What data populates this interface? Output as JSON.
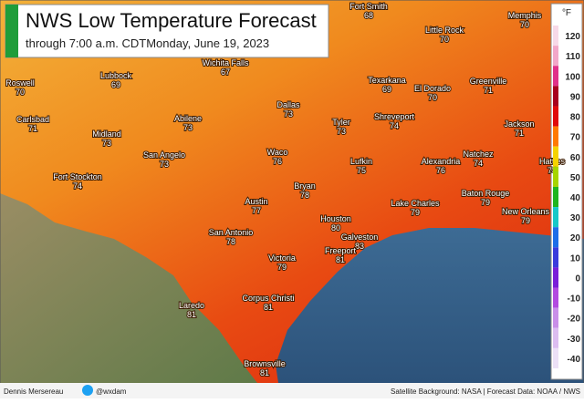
{
  "header": {
    "title": "NWS Low Temperature Forecast",
    "subtitle": "through 7:00 a.m. CDTMonday, June 19, 2023"
  },
  "cities": [
    {
      "name": "Fort Smith",
      "value": 68
    },
    {
      "name": "Memphis",
      "value": 70
    },
    {
      "name": "Little Rock",
      "value": 70
    },
    {
      "name": "Roswell",
      "value": 70
    },
    {
      "name": "Wichita Falls",
      "value": 67
    },
    {
      "name": "Lubbock",
      "value": 69
    },
    {
      "name": "Texarkana",
      "value": 69
    },
    {
      "name": "El Dorado",
      "value": 70
    },
    {
      "name": "Greenville",
      "value": 71
    },
    {
      "name": "Carlsbad",
      "value": 71
    },
    {
      "name": "Dallas",
      "value": 73
    },
    {
      "name": "Midland",
      "value": 73
    },
    {
      "name": "Abilene",
      "value": 73
    },
    {
      "name": "Tyler",
      "value": 73
    },
    {
      "name": "Shreveport",
      "value": 74
    },
    {
      "name": "Jackson",
      "value": 71
    },
    {
      "name": "San Angelo",
      "value": 73
    },
    {
      "name": "Waco",
      "value": 76
    },
    {
      "name": "Lufkin",
      "value": 75
    },
    {
      "name": "Alexandria",
      "value": 76
    },
    {
      "name": "Natchez",
      "value": 74
    },
    {
      "name": "Hatties",
      "value": 74
    },
    {
      "name": "Fort Stockton",
      "value": 74
    },
    {
      "name": "Bryan",
      "value": 78
    },
    {
      "name": "Austin",
      "value": 77
    },
    {
      "name": "Baton Rouge",
      "value": 79
    },
    {
      "name": "Lake Charles",
      "value": 79
    },
    {
      "name": "New Orleans",
      "value": 79
    },
    {
      "name": "Houston",
      "value": 80
    },
    {
      "name": "San Antonio",
      "value": 78
    },
    {
      "name": "Galveston",
      "value": 83
    },
    {
      "name": "Freeport",
      "value": 81
    },
    {
      "name": "Victoria",
      "value": 79
    },
    {
      "name": "Corpus Christi",
      "value": 81
    },
    {
      "name": "Laredo",
      "value": 81
    },
    {
      "name": "Brownsville",
      "value": 81
    }
  ],
  "legend": {
    "unit": "°F",
    "labels": [
      120,
      110,
      100,
      90,
      80,
      70,
      60,
      50,
      40,
      30,
      20,
      10,
      0,
      -10,
      -20,
      -30,
      -40
    ],
    "colors": [
      "#f7d9e8",
      "#f2a7c9",
      "#e0318a",
      "#a8001e",
      "#e00a0a",
      "#ff7a00",
      "#f5d200",
      "#a6d400",
      "#1fb51f",
      "#16c8c8",
      "#1e6ee8",
      "#3b3bdc",
      "#7a1fd8",
      "#b24ae0",
      "#c98fe8",
      "#dcbdf0",
      "#ece0f6"
    ]
  },
  "footer": {
    "author": "Dennis Mersereau",
    "handle": "@wxdam",
    "credits": "Satellite Background: NASA | Forecast Data: NOAA / NWS"
  }
}
